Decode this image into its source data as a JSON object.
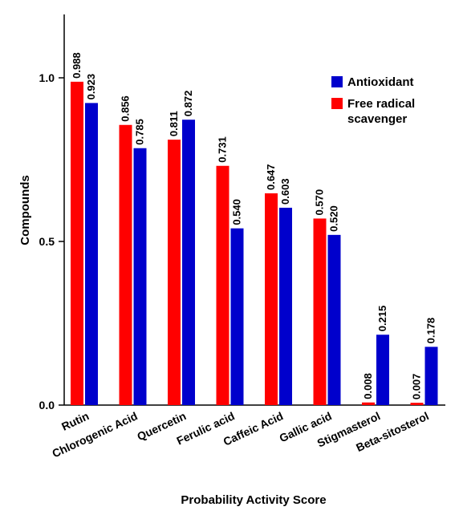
{
  "chart_data": {
    "type": "bar",
    "title": "",
    "xlabel": "Probability Activity Score",
    "ylabel": "Compounds",
    "ylim": [
      0,
      1.2
    ],
    "yticks": [
      "0.0",
      "0.5",
      "1.0"
    ],
    "categories": [
      "Rutin",
      "Chlorogenic Acid",
      "Quercetin",
      "Ferulic acid",
      "Caffeic Acid",
      "Gallic acid",
      "Stigmasterol",
      "Beta-sitosterol"
    ],
    "series": [
      {
        "name": "Free radical scavenger",
        "color": "#ff0000",
        "values": [
          0.988,
          0.856,
          0.811,
          0.731,
          0.647,
          0.57,
          0.008,
          0.007
        ],
        "labels": [
          "0.988",
          "0.856",
          "0.811",
          "0.731",
          "0.647",
          "0.570",
          "0.008",
          "0.007"
        ]
      },
      {
        "name": "Antioxidant",
        "color": "#0000cc",
        "values": [
          0.923,
          0.785,
          0.872,
          0.54,
          0.603,
          0.52,
          0.215,
          0.178
        ],
        "labels": [
          "0.923",
          "0.785",
          "0.872",
          "0.540",
          "0.603",
          "0.520",
          "0.215",
          "0.178"
        ]
      }
    ],
    "legend": {
      "position": "top-right",
      "items": [
        {
          "label": "Antioxidant",
          "color": "#0000cc"
        },
        {
          "label": "Free radical scavenger",
          "label_lines": [
            "Free radical",
            "scavenger"
          ],
          "color": "#ff0000"
        }
      ]
    },
    "grid": false
  }
}
